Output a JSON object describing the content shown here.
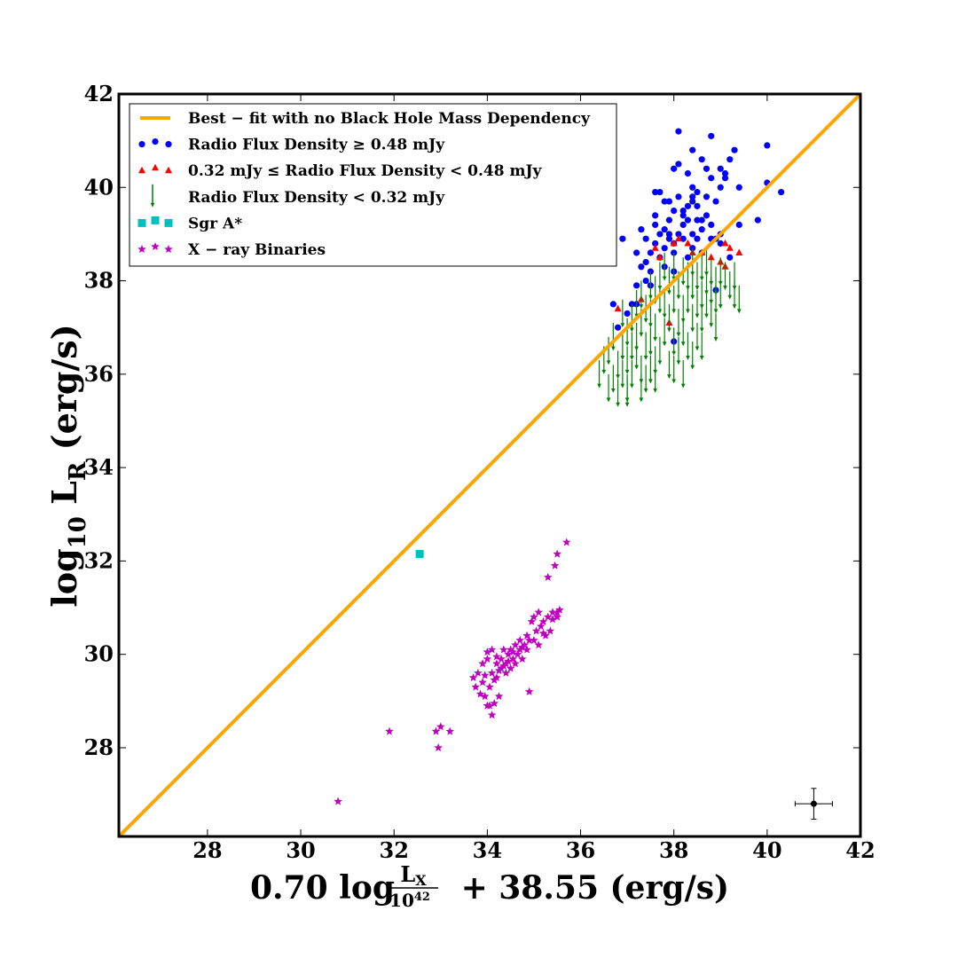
{
  "chart_data": {
    "type": "scatter",
    "xlim": [
      26.1,
      42
    ],
    "ylim": [
      26.1,
      42
    ],
    "x_ticks": [
      28,
      30,
      32,
      34,
      36,
      38,
      40,
      42
    ],
    "y_ticks": [
      28,
      30,
      32,
      34,
      36,
      38,
      40,
      42
    ],
    "x_tick_labels": [
      "28",
      "30",
      "32",
      "34",
      "36",
      "38",
      "40",
      "42"
    ],
    "y_tick_labels": [
      "28",
      "30",
      "32",
      "34",
      "36",
      "38",
      "40",
      "42"
    ],
    "xlabel": {
      "prefix": "0.70 log",
      "numerator": "L",
      "numerator_sub": "X",
      "denominator": "10",
      "denominator_sup": "42",
      "suffix": "+ 38.55  (erg/s)"
    },
    "ylabel": {
      "prefix": "log",
      "prefix_sub": "10",
      "main": "L",
      "main_sub": "R",
      "suffix": "(erg/s)"
    },
    "grid": false,
    "legend_position": "top-left",
    "colors": {
      "fit": "#ffa500",
      "detected": "#0000ff",
      "marginal": "#ff0000",
      "upper_limit": "#008000",
      "sgr": "#00bfbf",
      "xrb": "#bf00bf"
    },
    "legend": [
      {
        "key": "fit",
        "marker": "line",
        "label": "Best − fit with no Black Hole Mass Dependency"
      },
      {
        "key": "detected",
        "marker": "circle",
        "label": "Radio Flux Density ≥ 0.48 mJy"
      },
      {
        "key": "marginal",
        "marker": "triangle",
        "label": "0.32 mJy ≤ Radio Flux Density < 0.48 mJy"
      },
      {
        "key": "upper_limit",
        "marker": "arrow",
        "label": "Radio Flux Density < 0.32 mJy"
      },
      {
        "key": "sgr",
        "marker": "square",
        "label": "Sgr  A*"
      },
      {
        "key": "xrb",
        "marker": "star",
        "label": "X − ray  Binaries"
      }
    ],
    "fit_line": {
      "slope": 1,
      "intercept": 0,
      "x": [
        26.1,
        42
      ]
    },
    "series": [
      {
        "name": "Radio Flux Density ≥ 0.48 mJy",
        "marker": "circle",
        "points": [
          [
            36.7,
            37.5
          ],
          [
            36.9,
            38.9
          ],
          [
            37.0,
            37.3
          ],
          [
            37.1,
            37.5
          ],
          [
            37.2,
            38.6
          ],
          [
            37.2,
            37.5
          ],
          [
            37.3,
            38.3
          ],
          [
            37.3,
            39.1
          ],
          [
            37.4,
            38.4
          ],
          [
            37.4,
            38.0
          ],
          [
            37.4,
            38.9
          ],
          [
            37.5,
            38.6
          ],
          [
            37.5,
            37.9
          ],
          [
            37.5,
            38.2
          ],
          [
            37.6,
            39.4
          ],
          [
            37.6,
            39.9
          ],
          [
            37.6,
            38.8
          ],
          [
            37.7,
            38.5
          ],
          [
            37.7,
            39.9
          ],
          [
            37.7,
            39.0
          ],
          [
            37.8,
            38.7
          ],
          [
            37.8,
            39.1
          ],
          [
            37.8,
            38.3
          ],
          [
            37.8,
            39.7
          ],
          [
            37.9,
            38.9
          ],
          [
            37.9,
            39.0
          ],
          [
            37.9,
            39.3
          ],
          [
            38.0,
            40.4
          ],
          [
            38.0,
            38.6
          ],
          [
            38.0,
            39.5
          ],
          [
            38.0,
            38.2
          ],
          [
            38.0,
            36.7
          ],
          [
            38.1,
            41.2
          ],
          [
            38.1,
            39.8
          ],
          [
            38.1,
            39.0
          ],
          [
            38.1,
            40.5
          ],
          [
            38.2,
            38.9
          ],
          [
            38.2,
            39.4
          ],
          [
            38.2,
            39.2
          ],
          [
            38.3,
            40.3
          ],
          [
            38.3,
            39.6
          ],
          [
            38.3,
            38.5
          ],
          [
            38.3,
            39.3
          ],
          [
            38.4,
            39.8
          ],
          [
            38.4,
            39.0
          ],
          [
            38.4,
            40.0
          ],
          [
            38.4,
            40.8
          ],
          [
            38.4,
            38.7
          ],
          [
            38.5,
            39.3
          ],
          [
            38.5,
            39.9
          ],
          [
            38.5,
            39.6
          ],
          [
            38.6,
            39.1
          ],
          [
            38.6,
            40.6
          ],
          [
            38.6,
            38.6
          ],
          [
            38.7,
            39.4
          ],
          [
            38.7,
            39.8
          ],
          [
            38.7,
            40.4
          ],
          [
            38.8,
            41.1
          ],
          [
            38.8,
            39.2
          ],
          [
            38.8,
            38.9
          ],
          [
            38.9,
            38.9
          ],
          [
            38.9,
            37.8
          ],
          [
            38.9,
            39.7
          ],
          [
            39.0,
            40.4
          ],
          [
            39.0,
            40.0
          ],
          [
            39.0,
            38.8
          ],
          [
            39.0,
            39.0
          ],
          [
            39.1,
            40.3
          ],
          [
            39.2,
            40.6
          ],
          [
            39.2,
            38.5
          ],
          [
            39.3,
            40.8
          ],
          [
            39.4,
            39.2
          ],
          [
            39.4,
            40.0
          ],
          [
            39.8,
            39.3
          ],
          [
            40.0,
            40.9
          ],
          [
            40.0,
            40.1
          ],
          [
            40.3,
            39.9
          ],
          [
            39.1,
            40.2
          ],
          [
            38.6,
            39.3
          ],
          [
            37.9,
            39.7
          ],
          [
            38.5,
            38.9
          ],
          [
            38.2,
            39.5
          ],
          [
            37.6,
            39.2
          ],
          [
            38.8,
            40.2
          ],
          [
            38.0,
            38.8
          ],
          [
            38.4,
            39.7
          ],
          [
            37.2,
            37.9
          ],
          [
            36.8,
            37.0
          ]
        ]
      },
      {
        "name": "0.32 mJy ≤ Radio Flux Density < 0.48 mJy",
        "marker": "triangle",
        "points": [
          [
            36.8,
            37.4
          ],
          [
            37.3,
            37.6
          ],
          [
            37.6,
            38.7
          ],
          [
            37.7,
            38.5
          ],
          [
            37.9,
            37.1
          ],
          [
            38.0,
            38.8
          ],
          [
            38.1,
            38.9
          ],
          [
            38.3,
            38.8
          ],
          [
            38.4,
            38.6
          ],
          [
            38.6,
            38.6
          ],
          [
            38.8,
            38.5
          ],
          [
            39.0,
            38.4
          ],
          [
            39.1,
            38.8
          ],
          [
            39.2,
            38.7
          ],
          [
            39.4,
            38.6
          ],
          [
            39.1,
            38.3
          ]
        ]
      },
      {
        "name": "Radio Flux Density < 0.32 mJy",
        "marker": "arrow",
        "arrow_length": 0.6,
        "points": [
          [
            36.4,
            36.3
          ],
          [
            36.5,
            36.6
          ],
          [
            36.6,
            36.0
          ],
          [
            36.6,
            36.8
          ],
          [
            36.7,
            37.1
          ],
          [
            36.7,
            36.2
          ],
          [
            36.8,
            36.5
          ],
          [
            36.8,
            35.9
          ],
          [
            36.9,
            36.9
          ],
          [
            36.9,
            36.3
          ],
          [
            37.0,
            37.2
          ],
          [
            37.0,
            36.6
          ],
          [
            37.0,
            36.0
          ],
          [
            37.1,
            36.9
          ],
          [
            37.1,
            37.5
          ],
          [
            37.1,
            36.3
          ],
          [
            37.2,
            36.7
          ],
          [
            37.2,
            37.8
          ],
          [
            37.2,
            37.1
          ],
          [
            37.3,
            36.4
          ],
          [
            37.3,
            37.4
          ],
          [
            37.3,
            38.0
          ],
          [
            37.4,
            36.9
          ],
          [
            37.4,
            37.7
          ],
          [
            37.4,
            36.2
          ],
          [
            37.5,
            38.2
          ],
          [
            37.5,
            37.0
          ],
          [
            37.5,
            37.6
          ],
          [
            37.6,
            36.6
          ],
          [
            37.6,
            38.1
          ],
          [
            37.6,
            37.3
          ],
          [
            37.7,
            37.9
          ],
          [
            37.7,
            36.8
          ],
          [
            37.7,
            38.4
          ],
          [
            37.8,
            37.2
          ],
          [
            37.8,
            37.8
          ],
          [
            37.8,
            38.6
          ],
          [
            37.9,
            36.5
          ],
          [
            37.9,
            37.5
          ],
          [
            37.9,
            38.3
          ],
          [
            38.0,
            37.0
          ],
          [
            38.0,
            37.9
          ],
          [
            38.0,
            38.6
          ],
          [
            38.1,
            37.4
          ],
          [
            38.1,
            38.2
          ],
          [
            38.1,
            36.8
          ],
          [
            38.2,
            37.7
          ],
          [
            38.2,
            38.5
          ],
          [
            38.2,
            37.2
          ],
          [
            38.3,
            37.9
          ],
          [
            38.3,
            38.4
          ],
          [
            38.3,
            36.9
          ],
          [
            38.4,
            37.5
          ],
          [
            38.4,
            38.2
          ],
          [
            38.4,
            38.7
          ],
          [
            38.5,
            37.8
          ],
          [
            38.5,
            38.4
          ],
          [
            38.5,
            37.1
          ],
          [
            38.6,
            38.0
          ],
          [
            38.6,
            38.6
          ],
          [
            38.6,
            37.5
          ],
          [
            38.7,
            38.3
          ],
          [
            38.7,
            37.8
          ],
          [
            38.7,
            38.7
          ],
          [
            38.8,
            38.1
          ],
          [
            38.8,
            38.5
          ],
          [
            38.8,
            37.6
          ],
          [
            38.9,
            38.3
          ],
          [
            38.9,
            37.9
          ],
          [
            39.0,
            38.5
          ],
          [
            39.0,
            38.0
          ],
          [
            39.1,
            38.4
          ],
          [
            39.2,
            38.2
          ],
          [
            39.3,
            38.0
          ],
          [
            36.9,
            37.6
          ],
          [
            37.3,
            36.0
          ],
          [
            37.6,
            36.2
          ],
          [
            38.0,
            36.4
          ],
          [
            38.4,
            36.7
          ],
          [
            38.9,
            37.3
          ],
          [
            37.0,
            35.9
          ],
          [
            37.5,
            36.4
          ],
          [
            38.2,
            36.3
          ],
          [
            38.6,
            36.9
          ],
          [
            39.3,
            38.4
          ],
          [
            39.4,
            37.9
          ]
        ]
      },
      {
        "name": "Sgr  A*",
        "marker": "square",
        "points": [
          [
            32.55,
            32.15
          ]
        ]
      },
      {
        "name": "X − ray  Binaries",
        "marker": "star",
        "points": [
          [
            30.8,
            26.85
          ],
          [
            31.9,
            28.35
          ],
          [
            32.9,
            28.35
          ],
          [
            32.95,
            28.0
          ],
          [
            33.0,
            28.45
          ],
          [
            33.2,
            28.35
          ],
          [
            33.7,
            29.5
          ],
          [
            33.75,
            29.3
          ],
          [
            33.8,
            29.6
          ],
          [
            33.85,
            29.15
          ],
          [
            33.9,
            29.8
          ],
          [
            33.9,
            29.4
          ],
          [
            33.95,
            29.1
          ],
          [
            34.0,
            28.9
          ],
          [
            34.0,
            29.9
          ],
          [
            34.05,
            29.3
          ],
          [
            34.1,
            28.7
          ],
          [
            34.1,
            30.1
          ],
          [
            34.1,
            29.6
          ],
          [
            34.15,
            28.95
          ],
          [
            34.2,
            29.8
          ],
          [
            34.2,
            29.5
          ],
          [
            34.25,
            29.1
          ],
          [
            34.3,
            29.9
          ],
          [
            34.3,
            29.7
          ],
          [
            34.35,
            30.1
          ],
          [
            34.4,
            29.6
          ],
          [
            34.4,
            29.8
          ],
          [
            34.45,
            30.0
          ],
          [
            34.5,
            29.7
          ],
          [
            34.5,
            30.1
          ],
          [
            34.55,
            29.9
          ],
          [
            34.6,
            30.2
          ],
          [
            34.6,
            29.8
          ],
          [
            34.65,
            30.0
          ],
          [
            34.7,
            30.3
          ],
          [
            34.7,
            30.1
          ],
          [
            34.75,
            29.9
          ],
          [
            34.8,
            30.2
          ],
          [
            34.85,
            30.4
          ],
          [
            34.9,
            30.3
          ],
          [
            34.9,
            29.2
          ],
          [
            34.95,
            30.7
          ],
          [
            35.0,
            30.3
          ],
          [
            35.0,
            30.8
          ],
          [
            35.05,
            30.5
          ],
          [
            35.1,
            30.2
          ],
          [
            35.1,
            30.9
          ],
          [
            35.15,
            30.6
          ],
          [
            35.2,
            30.7
          ],
          [
            35.25,
            30.4
          ],
          [
            35.3,
            30.8
          ],
          [
            35.3,
            31.65
          ],
          [
            35.35,
            30.5
          ],
          [
            35.4,
            30.9
          ],
          [
            35.45,
            31.9
          ],
          [
            35.5,
            30.8
          ],
          [
            35.5,
            32.15
          ],
          [
            35.55,
            30.95
          ],
          [
            35.7,
            32.4
          ],
          [
            34.0,
            30.05
          ],
          [
            34.2,
            29.95
          ],
          [
            34.35,
            29.75
          ],
          [
            34.55,
            30.05
          ],
          [
            34.25,
            29.65
          ],
          [
            34.45,
            29.85
          ],
          [
            33.95,
            29.55
          ],
          [
            34.15,
            29.45
          ],
          [
            34.75,
            30.15
          ],
          [
            35.2,
            30.45
          ],
          [
            35.4,
            30.75
          ],
          [
            35.5,
            30.9
          ],
          [
            34.05,
            28.9
          ],
          [
            34.85,
            30.1
          ]
        ]
      }
    ],
    "error_bar_example": {
      "x": 41.0,
      "y": 26.8,
      "xerr": 0.4,
      "yerr": 0.33
    }
  }
}
